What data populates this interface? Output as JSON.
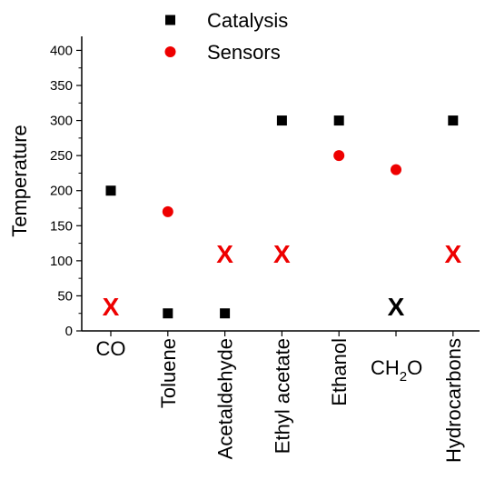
{
  "chart_data": {
    "type": "scatter",
    "title": "",
    "ylabel": "Temperature",
    "xlabel": "",
    "ylim": [
      0,
      420
    ],
    "yticks": [
      0,
      50,
      100,
      150,
      200,
      250,
      300,
      350,
      400
    ],
    "grid": false,
    "legend_position": "top-center",
    "categories": [
      "CO",
      "Toluene",
      "Acetaldehyde",
      "Ethyl acetate",
      "Ethanol",
      "CH2O",
      "Hydrocarbons"
    ],
    "category_display": {
      "CO": {
        "text": "CO",
        "sub": "",
        "tail": "",
        "rotated": false
      },
      "Toluene": {
        "text": "Toluene",
        "sub": "",
        "tail": "",
        "rotated": true
      },
      "Acetaldehyde": {
        "text": "Acetaldehyde",
        "sub": "",
        "tail": "",
        "rotated": true
      },
      "Ethyl acetate": {
        "text": "Ethyl acetate",
        "sub": "",
        "tail": "",
        "rotated": true
      },
      "Ethanol": {
        "text": "Ethanol",
        "sub": "",
        "tail": "",
        "rotated": true
      },
      "CH2O": {
        "text": "CH",
        "sub": "2",
        "tail": "O",
        "rotated": false
      },
      "Hydrocarbons": {
        "text": "Hydrocarbons",
        "sub": "",
        "tail": "",
        "rotated": true
      }
    },
    "series": [
      {
        "name": "Catalysis",
        "marker": "square",
        "color": "#000000",
        "points": [
          {
            "category": "CO",
            "y": 200
          },
          {
            "category": "Toluene",
            "y": 25
          },
          {
            "category": "Acetaldehyde",
            "y": 25
          },
          {
            "category": "Ethyl acetate",
            "y": 300
          },
          {
            "category": "Ethanol",
            "y": 300
          },
          {
            "category": "Hydrocarbons",
            "y": 300
          }
        ]
      },
      {
        "name": "Sensors",
        "marker": "circle",
        "color": "#ee0000",
        "points": [
          {
            "category": "Toluene",
            "y": 170
          },
          {
            "category": "Ethanol",
            "y": 250
          },
          {
            "category": "CH2O",
            "y": 230
          }
        ]
      }
    ],
    "annotations": [
      {
        "text": "X",
        "category": "CO",
        "y": 35,
        "color": "#ee0000"
      },
      {
        "text": "X",
        "category": "Acetaldehyde",
        "y": 110,
        "color": "#ee0000"
      },
      {
        "text": "X",
        "category": "Ethyl acetate",
        "y": 110,
        "color": "#ee0000"
      },
      {
        "text": "X",
        "category": "CH2O",
        "y": 35,
        "color": "#000000"
      },
      {
        "text": "X",
        "category": "Hydrocarbons",
        "y": 110,
        "color": "#ee0000"
      }
    ]
  }
}
